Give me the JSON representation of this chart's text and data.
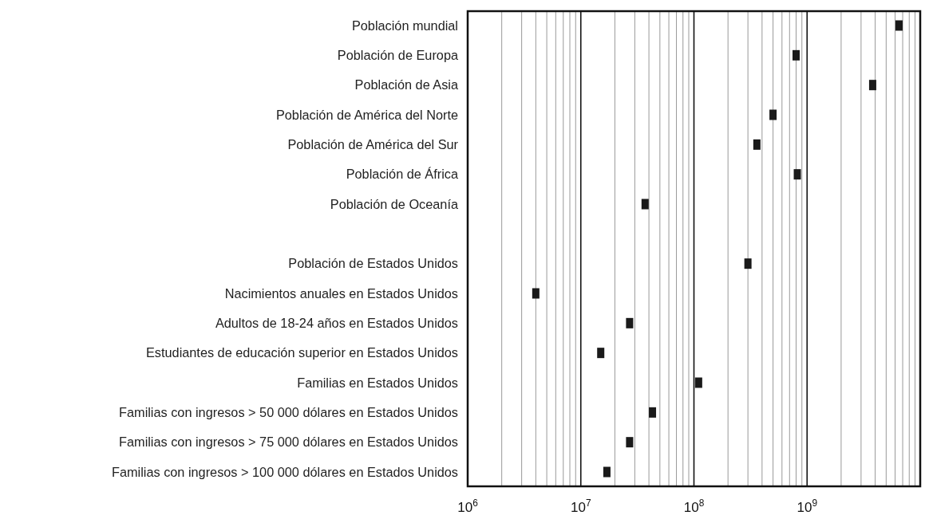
{
  "chart_data": {
    "type": "scatter",
    "orientation": "horizontal",
    "log": "x",
    "marker": "square",
    "grid": "x",
    "categories": [
      "Población mundial",
      "Población de Europa",
      "Población de Asia",
      "Población de América del Norte",
      "Población de América del Sur",
      "Población de África",
      "Población de Oceanía",
      null,
      "Población de Estados Unidos",
      "Nacimientos anuales en Estados Unidos",
      "Adultos de 18-24 años en Estados Unidos",
      "Estudiantes de educación superior en Estados Unidos",
      "Familias en Estados Unidos",
      "Familias con ingresos > 50 000 dólares en Estados Unidos",
      "Familias con ingresos > 75 000 dólares en Estados Unidos",
      "Familias con ingresos > 100 000 dólares en Estados Unidos"
    ],
    "series": [
      {
        "color": "#1a1a1a",
        "values": [
          6500000000,
          800000000,
          3800000000,
          500000000,
          360000000,
          820000000,
          37000000,
          null,
          300000000,
          4000000,
          27000000,
          15000000,
          110000000,
          43000000,
          27000000,
          17000000
        ]
      }
    ],
    "xlim": [
      1000000,
      10000000000
    ],
    "xticks": [
      {
        "value": 1000000,
        "label": "10$^{6}$"
      },
      {
        "value": 2000000,
        "label": null
      },
      {
        "value": 3000000,
        "label": null
      },
      {
        "value": 4000000,
        "label": null
      },
      {
        "value": 5000000,
        "label": null
      },
      {
        "value": 6000000,
        "label": null
      },
      {
        "value": 7000000,
        "label": null
      },
      {
        "value": 8000000,
        "label": null
      },
      {
        "value": 9000000,
        "label": null
      },
      {
        "value": 10000000,
        "label": "10$^{7}$"
      },
      {
        "value": 20000000,
        "label": null
      },
      {
        "value": 30000000,
        "label": null
      },
      {
        "value": 40000000,
        "label": null
      },
      {
        "value": 50000000,
        "label": null
      },
      {
        "value": 60000000,
        "label": null
      },
      {
        "value": 70000000,
        "label": null
      },
      {
        "value": 80000000,
        "label": null
      },
      {
        "value": 90000000,
        "label": null
      },
      {
        "value": 100000000,
        "label": "10$^{8}$"
      },
      {
        "value": 200000000,
        "label": null
      },
      {
        "value": 300000000,
        "label": null
      },
      {
        "value": 400000000,
        "label": null
      },
      {
        "value": 500000000,
        "label": null
      },
      {
        "value": 600000000,
        "label": null
      },
      {
        "value": 700000000,
        "label": null
      },
      {
        "value": 800000000,
        "label": null
      },
      {
        "value": 900000000,
        "label": null
      },
      {
        "value": 1000000000,
        "label": "10$^{9}$"
      },
      {
        "value": 2000000000,
        "label": null
      },
      {
        "value": 3000000000,
        "label": null
      },
      {
        "value": 4000000000,
        "label": null
      },
      {
        "value": 5000000000,
        "label": null
      },
      {
        "value": 6000000000,
        "label": null
      },
      {
        "value": 7000000000,
        "label": null
      },
      {
        "value": 8000000000,
        "label": null
      },
      {
        "value": 9000000000,
        "label": null
      }
    ]
  }
}
